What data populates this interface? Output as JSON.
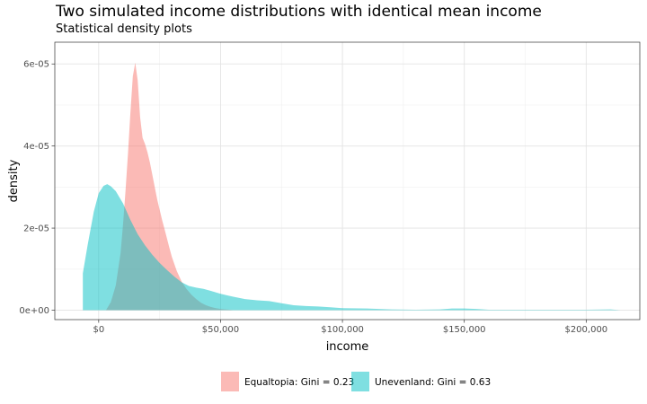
{
  "chart_data": {
    "type": "area",
    "title": "Two simulated income distributions with identical mean income",
    "subtitle": "Statistical density plots",
    "xlabel": "income",
    "ylabel": "density",
    "xlim": [
      -18000,
      222000
    ],
    "ylim": [
      -2.3e-06,
      6.53e-05
    ],
    "x_ticks": [
      {
        "value": 0,
        "label": "$0"
      },
      {
        "value": 50000,
        "label": "$50,000"
      },
      {
        "value": 100000,
        "label": "$100,000"
      },
      {
        "value": 150000,
        "label": "$150,000"
      },
      {
        "value": 200000,
        "label": "$200,000"
      }
    ],
    "y_ticks": [
      {
        "value": 0,
        "label": "0e+00"
      },
      {
        "value": 2e-05,
        "label": "2e-05"
      },
      {
        "value": 4e-05,
        "label": "4e-05"
      },
      {
        "value": 6e-05,
        "label": "6e-05"
      }
    ],
    "grid": true,
    "legend_position": "bottom",
    "series": [
      {
        "name": "Equaltopia: Gini = 0.23",
        "color": "#F8766D",
        "x": [
          3000,
          5000,
          7000,
          9000,
          10000,
          11000,
          12000,
          13000,
          14000,
          15000,
          16000,
          17000,
          18000,
          19000,
          20000,
          21000,
          22000,
          23000,
          24000,
          25000,
          26000,
          27000,
          28000,
          29000,
          30000,
          32000,
          34000,
          36000,
          38000,
          40000,
          42000,
          44000,
          46000,
          48000,
          50000,
          52000,
          54000,
          55000
        ],
        "y": [
          0,
          2e-06,
          6e-06,
          1.4e-05,
          2.1e-05,
          2.9e-05,
          3.8e-05,
          4.8e-05,
          5.7e-05,
          6.03e-05,
          5.6e-05,
          4.7e-05,
          4.2e-05,
          4.05e-05,
          3.85e-05,
          3.6e-05,
          3.3e-05,
          3e-05,
          2.7e-05,
          2.45e-05,
          2.2e-05,
          1.98e-05,
          1.75e-05,
          1.52e-05,
          1.3e-05,
          9.6e-06,
          7e-06,
          5.2e-06,
          3.8e-06,
          2.7e-06,
          1.8e-06,
          1.2e-06,
          8e-07,
          5e-07,
          3e-07,
          2e-07,
          1e-07,
          0
        ]
      },
      {
        "name": "Unevenland: Gini = 0.63",
        "color": "#00BFC4",
        "x": [
          -6500,
          -4500,
          -2000,
          0,
          2000,
          3500,
          5000,
          7000,
          10000,
          13000,
          16000,
          19000,
          22000,
          25000,
          28000,
          31000,
          34000,
          37000,
          40000,
          43000,
          46000,
          50000,
          55000,
          60000,
          65000,
          70000,
          75000,
          80000,
          85000,
          90000,
          95000,
          100000,
          110000,
          120000,
          130000,
          140000,
          145000,
          150000,
          155000,
          160000,
          170000,
          180000,
          190000,
          200000,
          210000,
          214000
        ],
        "y": [
          9e-06,
          1.6e-05,
          2.4e-05,
          2.85e-05,
          3.03e-05,
          3.07e-05,
          3.02e-05,
          2.9e-05,
          2.6e-05,
          2.2e-05,
          1.85e-05,
          1.58e-05,
          1.35e-05,
          1.15e-05,
          9.8e-06,
          8.2e-06,
          6.8e-06,
          5.9e-06,
          5.5e-06,
          5.2e-06,
          4.7e-06,
          4e-06,
          3.3e-06,
          2.7e-06,
          2.4e-06,
          2.2e-06,
          1.7e-06,
          1.2e-06,
          1e-06,
          9e-07,
          7e-07,
          5e-07,
          4e-07,
          2e-07,
          1e-07,
          2e-07,
          4e-07,
          4e-07,
          3e-07,
          1e-07,
          1e-07,
          1e-07,
          1e-07,
          1e-07,
          2e-07,
          0
        ]
      }
    ]
  }
}
